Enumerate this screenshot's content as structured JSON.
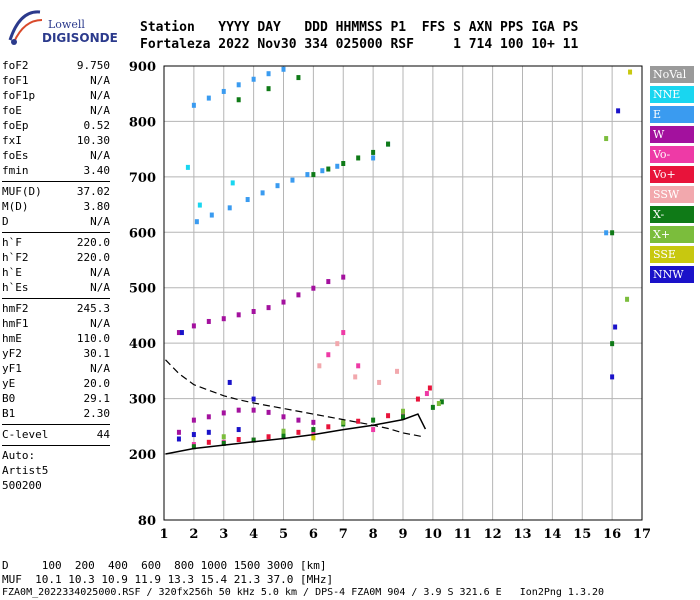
{
  "logo": {
    "line1": "Lowell",
    "line2": "DIGISONDE"
  },
  "header": {
    "line1": "Station   YYYY DAY   DDD HHMMSS P1  FFS S AXN PPS IGA PS",
    "line2": "Fortaleza 2022 Nov30 334 025000 RSF     1 714 100 10+ 11"
  },
  "params": {
    "group1": [
      {
        "name": "foF2",
        "value": "9.750"
      },
      {
        "name": "foF1",
        "value": "N/A"
      },
      {
        "name": "foF1p",
        "value": "N/A"
      },
      {
        "name": "foE",
        "value": "N/A"
      },
      {
        "name": "foEp",
        "value": "0.52"
      },
      {
        "name": "fxI",
        "value": "10.30"
      },
      {
        "name": "foEs",
        "value": "N/A"
      },
      {
        "name": "fmin",
        "value": "3.40"
      }
    ],
    "group2": [
      {
        "name": "MUF(D)",
        "value": "37.02"
      },
      {
        "name": "M(D)",
        "value": "3.80"
      },
      {
        "name": "D",
        "value": "N/A"
      }
    ],
    "group3": [
      {
        "name": "h`F",
        "value": "220.0"
      },
      {
        "name": "h`F2",
        "value": "220.0"
      },
      {
        "name": "h`E",
        "value": "N/A"
      },
      {
        "name": "h`Es",
        "value": "N/A"
      }
    ],
    "group4": [
      {
        "name": "hmF2",
        "value": "245.3"
      },
      {
        "name": "hmF1",
        "value": "N/A"
      },
      {
        "name": "hmE",
        "value": "110.0"
      },
      {
        "name": "yF2",
        "value": "30.1"
      },
      {
        "name": "yF1",
        "value": "N/A"
      },
      {
        "name": "yE",
        "value": "20.0"
      },
      {
        "name": "B0",
        "value": "29.1"
      },
      {
        "name": "B1",
        "value": "2.30"
      }
    ],
    "group5": [
      {
        "name": "C-level",
        "value": "44"
      }
    ],
    "auto": [
      "Auto:",
      "Artist5",
      "500200"
    ]
  },
  "legend": [
    {
      "label": "NoVal",
      "color": "#9a9a9a"
    },
    {
      "label": "NNE",
      "color": "#19d6f0"
    },
    {
      "label": "E",
      "color": "#3a9bf0"
    },
    {
      "label": "W",
      "color": "#a3119e"
    },
    {
      "label": "Vo-",
      "color": "#ee3aa6"
    },
    {
      "label": "Vo+",
      "color": "#e8133a"
    },
    {
      "label": "SSW",
      "color": "#f2a8ad"
    },
    {
      "label": "X-",
      "color": "#0f7a17"
    },
    {
      "label": "X+",
      "color": "#7bbd3c"
    },
    {
      "label": "SSE",
      "color": "#c8c80f"
    },
    {
      "label": "NNW",
      "color": "#1a12c9"
    }
  ],
  "bottom": {
    "line1": "D     100  200  400  600  800 1000 1500 3000 [km]",
    "line2": "MUF  10.1 10.3 10.9 11.9 13.3 15.4 21.3 37.0 [MHz]",
    "line3": "FZA0M_2022334025000.RSF / 320fx256h 50 kHz 5.0 km / DPS-4 FZA0M 904 / 3.9 S 321.6 E   Ion2Png 1.3.20"
  },
  "chart_data": {
    "type": "scatter",
    "title": "",
    "xlabel": "",
    "ylabel": "",
    "xlim": [
      1,
      17
    ],
    "ylim": [
      80,
      900
    ],
    "x_ticks": [
      1,
      2,
      3,
      4,
      5,
      6,
      7,
      8,
      9,
      10,
      11,
      12,
      13,
      14,
      15,
      16,
      17
    ],
    "y_ticks": [
      200,
      300,
      400,
      500,
      600,
      700,
      800,
      900
    ],
    "y_ticks_extra": [
      80
    ],
    "grid": true,
    "legend_placement": "right",
    "series": [
      {
        "name": "NoVal",
        "color": "#9a9a9a",
        "points": []
      },
      {
        "name": "NNE",
        "color": "#19d6f0",
        "points": [
          [
            1.8,
            718
          ],
          [
            2.2,
            650
          ],
          [
            3.3,
            690
          ]
        ]
      },
      {
        "name": "E",
        "color": "#3a9bf0",
        "points": [
          [
            2.1,
            620
          ],
          [
            2.6,
            632
          ],
          [
            3.2,
            645
          ],
          [
            3.8,
            660
          ],
          [
            4.3,
            672
          ],
          [
            4.8,
            685
          ],
          [
            5.3,
            695
          ],
          [
            5.8,
            705
          ],
          [
            6.3,
            712
          ],
          [
            6.8,
            720
          ],
          [
            2.0,
            830
          ],
          [
            2.5,
            843
          ],
          [
            3.0,
            855
          ],
          [
            3.5,
            867
          ],
          [
            4.0,
            877
          ],
          [
            4.5,
            887
          ],
          [
            5.0,
            895
          ],
          [
            8.0,
            735
          ],
          [
            8.5,
            760
          ],
          [
            15.8,
            600
          ]
        ]
      },
      {
        "name": "W",
        "color": "#a3119e",
        "points": [
          [
            1.5,
            420
          ],
          [
            2.0,
            432
          ],
          [
            2.5,
            440
          ],
          [
            3.0,
            445
          ],
          [
            3.5,
            452
          ],
          [
            4.0,
            458
          ],
          [
            4.5,
            465
          ],
          [
            5.0,
            475
          ],
          [
            5.5,
            488
          ],
          [
            6.0,
            500
          ],
          [
            6.5,
            512
          ],
          [
            7.0,
            520
          ],
          [
            1.5,
            240
          ],
          [
            2.0,
            262
          ],
          [
            2.5,
            268
          ],
          [
            3.0,
            275
          ],
          [
            3.5,
            280
          ],
          [
            4.0,
            280
          ],
          [
            4.5,
            276
          ],
          [
            5.0,
            268
          ],
          [
            5.5,
            262
          ],
          [
            6.0,
            258
          ]
        ]
      },
      {
        "name": "Vo-",
        "color": "#ee3aa6",
        "points": [
          [
            2.0,
            218
          ],
          [
            3.0,
            222
          ],
          [
            4.0,
            226
          ],
          [
            5.0,
            232
          ],
          [
            6.0,
            240
          ],
          [
            6.5,
            380
          ],
          [
            7.0,
            420
          ],
          [
            7.5,
            360
          ],
          [
            8.0,
            245
          ],
          [
            9.0,
            270
          ],
          [
            9.8,
            310
          ]
        ]
      },
      {
        "name": "Vo+",
        "color": "#e8133a",
        "points": [
          [
            2.5,
            222
          ],
          [
            3.5,
            227
          ],
          [
            4.5,
            232
          ],
          [
            5.5,
            240
          ],
          [
            6.5,
            250
          ],
          [
            7.5,
            260
          ],
          [
            8.5,
            270
          ],
          [
            9.5,
            300
          ],
          [
            9.9,
            320
          ]
        ]
      },
      {
        "name": "SSW",
        "color": "#f2a8ad",
        "points": [
          [
            6.2,
            360
          ],
          [
            6.8,
            400
          ],
          [
            7.4,
            340
          ],
          [
            8.2,
            330
          ],
          [
            8.8,
            350
          ]
        ]
      },
      {
        "name": "X-",
        "color": "#0f7a17",
        "points": [
          [
            2.0,
            214
          ],
          [
            3.0,
            220
          ],
          [
            4.0,
            226
          ],
          [
            5.0,
            234
          ],
          [
            6.0,
            245
          ],
          [
            7.0,
            255
          ],
          [
            8.0,
            262
          ],
          [
            9.0,
            268
          ],
          [
            10.0,
            285
          ],
          [
            10.3,
            295
          ],
          [
            6.0,
            705
          ],
          [
            6.5,
            715
          ],
          [
            7.0,
            725
          ],
          [
            7.5,
            735
          ],
          [
            8.0,
            745
          ],
          [
            8.5,
            760
          ],
          [
            16.0,
            400
          ],
          [
            16.0,
            600
          ],
          [
            3.5,
            840
          ],
          [
            4.5,
            860
          ],
          [
            5.5,
            880
          ]
        ]
      },
      {
        "name": "X+",
        "color": "#7bbd3c",
        "points": [
          [
            3.0,
            232
          ],
          [
            5.0,
            242
          ],
          [
            7.0,
            258
          ],
          [
            9.0,
            278
          ],
          [
            10.2,
            292
          ],
          [
            15.8,
            770
          ],
          [
            16.5,
            480
          ]
        ]
      },
      {
        "name": "SSE",
        "color": "#c8c80f",
        "points": [
          [
            6.0,
            230
          ],
          [
            16.6,
            890
          ]
        ]
      },
      {
        "name": "NNW",
        "color": "#1a12c9",
        "points": [
          [
            1.5,
            228
          ],
          [
            2.0,
            236
          ],
          [
            2.5,
            240
          ],
          [
            3.5,
            245
          ],
          [
            1.6,
            420
          ],
          [
            16.0,
            340
          ],
          [
            16.1,
            430
          ],
          [
            16.2,
            820
          ],
          [
            3.2,
            330
          ],
          [
            4.0,
            300
          ]
        ]
      }
    ],
    "trace_solid": [
      [
        1.05,
        200
      ],
      [
        2,
        210
      ],
      [
        3,
        216
      ],
      [
        4,
        222
      ],
      [
        5,
        228
      ],
      [
        6,
        235
      ],
      [
        7,
        244
      ],
      [
        8,
        252
      ],
      [
        9,
        262
      ],
      [
        9.5,
        272
      ],
      [
        9.75,
        245
      ]
    ],
    "trace_dashed": [
      [
        1.05,
        370
      ],
      [
        1.5,
        345
      ],
      [
        2,
        325
      ],
      [
        2.5,
        315
      ],
      [
        3,
        305
      ],
      [
        3.5,
        298
      ],
      [
        4,
        292
      ],
      [
        5,
        282
      ],
      [
        6,
        272
      ],
      [
        7,
        262
      ],
      [
        8,
        252
      ],
      [
        8.5,
        246
      ],
      [
        9,
        238
      ],
      [
        9.6,
        232
      ]
    ]
  }
}
